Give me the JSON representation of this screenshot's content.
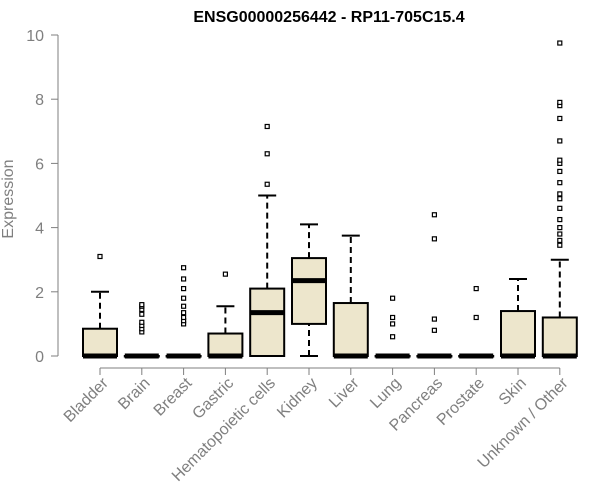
{
  "chart_data": {
    "type": "boxplot",
    "title": "ENSG00000256442 - RP11-705C15.4",
    "xlabel": "",
    "ylabel": "Expression",
    "ylim": [
      0,
      10
    ],
    "yticks": [
      0,
      2,
      4,
      6,
      8,
      10
    ],
    "categories": [
      "Bladder",
      "Brain",
      "Breast",
      "Gastric",
      "Hematopoietic cells",
      "Kidney",
      "Liver",
      "Lung",
      "Pancreas",
      "Prostate",
      "Skin",
      "Unknown / Other"
    ],
    "boxes": [
      {
        "category": "Bladder",
        "whisker_low": 0,
        "q1": 0,
        "median": 0,
        "q3": 0.85,
        "whisker_high": 2.0,
        "outliers": [
          3.1
        ]
      },
      {
        "category": "Brain",
        "whisker_low": 0,
        "q1": 0,
        "median": 0,
        "q3": 0,
        "whisker_high": 0,
        "outliers": [
          0.75,
          0.85,
          0.95,
          1.05,
          1.3,
          1.45,
          1.55,
          1.6
        ]
      },
      {
        "category": "Breast",
        "whisker_low": 0,
        "q1": 0,
        "median": 0,
        "q3": 0,
        "whisker_high": 0,
        "outliers": [
          1.0,
          1.1,
          1.2,
          1.35,
          1.55,
          1.8,
          2.1,
          2.4,
          2.75
        ]
      },
      {
        "category": "Gastric",
        "whisker_low": 0,
        "q1": 0,
        "median": 0,
        "q3": 0.7,
        "whisker_high": 1.55,
        "outliers": [
          2.55
        ]
      },
      {
        "category": "Hematopoietic cells",
        "whisker_low": 0,
        "q1": 0,
        "median": 1.35,
        "q3": 2.1,
        "whisker_high": 5.0,
        "outliers": [
          5.35,
          6.3,
          7.15
        ]
      },
      {
        "category": "Kidney",
        "whisker_low": 0,
        "q1": 1.0,
        "median": 2.35,
        "q3": 3.05,
        "whisker_high": 4.1,
        "outliers": []
      },
      {
        "category": "Liver",
        "whisker_low": 0,
        "q1": 0,
        "median": 0,
        "q3": 1.65,
        "whisker_high": 3.75,
        "outliers": []
      },
      {
        "category": "Lung",
        "whisker_low": 0,
        "q1": 0,
        "median": 0,
        "q3": 0,
        "whisker_high": 0,
        "outliers": [
          0.6,
          1.0,
          1.2,
          1.8
        ]
      },
      {
        "category": "Pancreas",
        "whisker_low": 0,
        "q1": 0,
        "median": 0,
        "q3": 0,
        "whisker_high": 0,
        "outliers": [
          0.8,
          1.15,
          3.65,
          4.4
        ]
      },
      {
        "category": "Prostate",
        "whisker_low": 0,
        "q1": 0,
        "median": 0,
        "q3": 0,
        "whisker_high": 0,
        "outliers": [
          1.2,
          2.1
        ]
      },
      {
        "category": "Skin",
        "whisker_low": 0,
        "q1": 0,
        "median": 0,
        "q3": 1.4,
        "whisker_high": 2.4,
        "outliers": []
      },
      {
        "category": "Unknown / Other",
        "whisker_low": 0,
        "q1": 0,
        "median": 0,
        "q3": 1.2,
        "whisker_high": 3.0,
        "outliers": [
          3.45,
          3.6,
          3.8,
          4.0,
          4.25,
          4.6,
          4.9,
          5.05,
          5.4,
          5.75,
          6.0,
          6.1,
          6.7,
          7.4,
          7.8,
          7.9,
          9.75
        ]
      }
    ],
    "colors": {
      "box_fill": "#ede6cc",
      "box_stroke": "#000000",
      "axis": "#7f7f7f",
      "tick_text": "#7f7f7f",
      "title": "#000000"
    },
    "grid": false
  }
}
